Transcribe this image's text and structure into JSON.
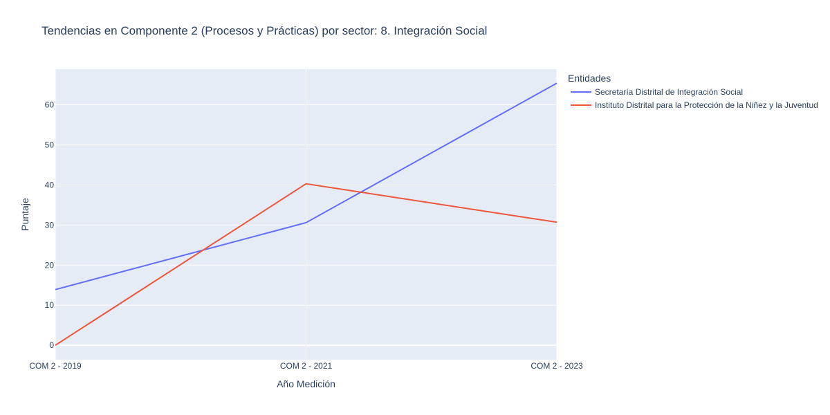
{
  "chart_data": {
    "type": "line",
    "title": "Tendencias en Componente 2 (Procesos y Prácticas) por sector: 8. Integración Social",
    "xlabel": "Año Medición",
    "ylabel": "Puntaje",
    "categories": [
      "COM 2 - 2019",
      "COM 2 - 2021",
      "COM 2 - 2023"
    ],
    "yticks": [
      0,
      10,
      20,
      30,
      40,
      50,
      60
    ],
    "ylim": [
      -3.6,
      68.9
    ],
    "grid": true,
    "legend": {
      "title": "Entidades",
      "position": "right"
    },
    "series": [
      {
        "name": "Secretaría Distrital de Integración Social",
        "values": [
          13.9,
          30.6,
          65.4
        ],
        "color": "#636efa"
      },
      {
        "name": "Instituto Distrital para la Protección de la Niñez y la Juventud",
        "values": [
          0.0,
          40.3,
          30.7
        ],
        "color": "#ef553b"
      }
    ],
    "plot_background": "#e5ecf6",
    "gridline_color": "#ffffff"
  }
}
